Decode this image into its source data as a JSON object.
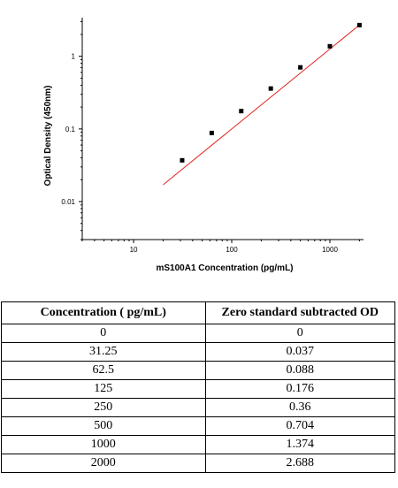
{
  "chart_data": {
    "type": "scatter",
    "xlabel": "mS100A1 Concentration (pg/mL)",
    "ylabel": "Optical Density (450nm)",
    "xscale": "log",
    "yscale": "log",
    "xlim": [
      3,
      2200
    ],
    "ylim": [
      0.003,
      3.4
    ],
    "x_ticks": [
      10,
      100,
      1000
    ],
    "x_tick_labels": [
      "10",
      "100",
      "1000"
    ],
    "y_ticks": [
      0.01,
      0.1,
      1
    ],
    "y_tick_labels": [
      "0.01",
      "0.1",
      "1"
    ],
    "points": [
      {
        "x": 31.25,
        "y": 0.037
      },
      {
        "x": 62.5,
        "y": 0.088
      },
      {
        "x": 125,
        "y": 0.176
      },
      {
        "x": 250,
        "y": 0.36
      },
      {
        "x": 500,
        "y": 0.704
      },
      {
        "x": 1000,
        "y": 1.374
      },
      {
        "x": 2000,
        "y": 2.688
      }
    ],
    "fit_line": {
      "x_start": 20,
      "x_end": 2000,
      "slope_loglog": 1.1,
      "y_at_2000": 2.7
    },
    "colors": {
      "fit": "#e3231f",
      "points": "#000000"
    }
  },
  "table": {
    "headers": [
      "Concentration ( pg/mL)",
      "Zero standard subtracted OD"
    ],
    "rows": [
      [
        "0",
        "0"
      ],
      [
        "31.25",
        "0.037"
      ],
      [
        "62.5",
        "0.088"
      ],
      [
        "125",
        "0.176"
      ],
      [
        "250",
        "0.36"
      ],
      [
        "500",
        "0.704"
      ],
      [
        "1000",
        "1.374"
      ],
      [
        "2000",
        "2.688"
      ]
    ]
  }
}
